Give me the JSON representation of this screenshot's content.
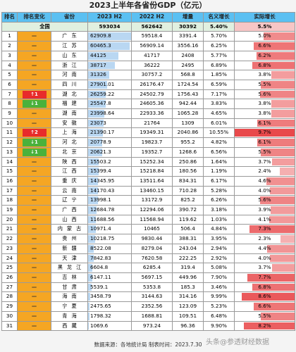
{
  "title": "2023上半年各省份GDP（亿元）",
  "headers": [
    "排名",
    "排名变化",
    "省份",
    "2023 H2",
    "2022 H2",
    "增量",
    "名义增长",
    "实际增长"
  ],
  "total": {
    "label": "全国",
    "h2023": "593034",
    "h2022": "562642",
    "inc": "30392",
    "nom": "5.40%",
    "real": "5.5%"
  },
  "rows": [
    {
      "rank": "1",
      "change": "—",
      "prov": "广东",
      "h2023": "62909.8",
      "h2022": "59518.4",
      "inc": "3391.4",
      "nom": "5.70%",
      "real": "5.0%",
      "realNum": 5.0
    },
    {
      "rank": "2",
      "change": "—",
      "prov": "江苏",
      "h2023": "60465.3",
      "h2022": "56909.14",
      "inc": "3556.16",
      "nom": "6.25%",
      "real": "6.6%",
      "realNum": 6.6
    },
    {
      "rank": "3",
      "change": "—",
      "prov": "山东",
      "h2023": "44125",
      "h2022": "41717",
      "inc": "2408",
      "nom": "5.77%",
      "real": "6.2%",
      "realNum": 6.2
    },
    {
      "rank": "4",
      "change": "—",
      "prov": "浙江",
      "h2023": "38717",
      "h2022": "36222",
      "inc": "2495",
      "nom": "6.89%",
      "real": "6.8%",
      "realNum": 6.8
    },
    {
      "rank": "5",
      "change": "—",
      "prov": "河南",
      "h2023": "31326",
      "h2022": "30757.2",
      "inc": "568.8",
      "nom": "1.85%",
      "real": "3.8%",
      "realNum": 3.8
    },
    {
      "rank": "6",
      "change": "—",
      "prov": "四川",
      "h2023": "27901.01",
      "h2022": "26176.47",
      "inc": "1724.54",
      "nom": "6.59%",
      "real": "5.5%",
      "realNum": 5.5
    },
    {
      "rank": "7",
      "change": "↑1",
      "prov": "湖北",
      "h2023": "26259.22",
      "h2022": "24502.79",
      "inc": "1756.43",
      "nom": "7.17%",
      "real": "5.6%",
      "realNum": 5.6
    },
    {
      "rank": "8",
      "change": "↓1",
      "prov": "福建",
      "h2023": "25547.8",
      "h2022": "24605.36",
      "inc": "942.44",
      "nom": "3.83%",
      "real": "3.8%",
      "realNum": 3.8
    },
    {
      "rank": "9",
      "change": "—",
      "prov": "湖南",
      "h2023": "23998.64",
      "h2022": "22933.36",
      "inc": "1065.28",
      "nom": "4.65%",
      "real": "3.8%",
      "realNum": 3.8
    },
    {
      "rank": "10",
      "change": "—",
      "prov": "安徽",
      "h2023": "23073",
      "h2022": "21764",
      "inc": "1309",
      "nom": "6.01%",
      "real": "6.1%",
      "realNum": 6.1
    },
    {
      "rank": "11",
      "change": "↑2",
      "prov": "上海",
      "h2023": "21390.17",
      "h2022": "19349.31",
      "inc": "2040.86",
      "nom": "10.55%",
      "real": "9.7%",
      "realNum": 9.7
    },
    {
      "rank": "12",
      "change": "↓1",
      "prov": "河北",
      "h2023": "20778.9",
      "h2022": "19823.7",
      "inc": "955.2",
      "nom": "4.82%",
      "real": "6.1%",
      "realNum": 6.1
    },
    {
      "rank": "13",
      "change": "↓1",
      "prov": "北京",
      "h2023": "20621.3",
      "h2022": "19352.7",
      "inc": "1268.6",
      "nom": "6.56%",
      "real": "5.5%",
      "realNum": 5.5
    },
    {
      "rank": "14",
      "change": "—",
      "prov": "陕西",
      "h2023": "15503.2",
      "h2022": "15252.34",
      "inc": "250.86",
      "nom": "1.64%",
      "real": "3.7%",
      "realNum": 3.7
    },
    {
      "rank": "15",
      "change": "—",
      "prov": "江西",
      "h2023": "15399.4",
      "h2022": "15218.84",
      "inc": "180.56",
      "nom": "1.19%",
      "real": "2.4%",
      "realNum": 2.4
    },
    {
      "rank": "16",
      "change": "—",
      "prov": "重庆",
      "h2023": "14345.95",
      "h2022": "13511.64",
      "inc": "834.31",
      "nom": "6.17%",
      "real": "4.6%",
      "realNum": 4.6
    },
    {
      "rank": "17",
      "change": "—",
      "prov": "云南",
      "h2023": "14170.43",
      "h2022": "13460.15",
      "inc": "710.28",
      "nom": "5.28%",
      "real": "4.0%",
      "realNum": 4.0
    },
    {
      "rank": "18",
      "change": "—",
      "prov": "辽宁",
      "h2023": "13998.1",
      "h2022": "13172.9",
      "inc": "825.2",
      "nom": "6.26%",
      "real": "5.6%",
      "realNum": 5.6
    },
    {
      "rank": "19",
      "change": "—",
      "prov": "广西",
      "h2023": "12684.78",
      "h2022": "12294.06",
      "inc": "390.72",
      "nom": "3.18%",
      "real": "3.9%",
      "realNum": 3.9
    },
    {
      "rank": "20",
      "change": "—",
      "prov": "山西",
      "h2023": "11688.56",
      "h2022": "11568.94",
      "inc": "119.62",
      "nom": "1.03%",
      "real": "4.1%",
      "realNum": 4.1
    },
    {
      "rank": "21",
      "change": "—",
      "prov": "内蒙古",
      "h2023": "10971.4",
      "h2022": "10465",
      "inc": "506.4",
      "nom": "4.84%",
      "real": "7.3%",
      "realNum": 7.3
    },
    {
      "rank": "22",
      "change": "—",
      "prov": "贵州",
      "h2023": "10218.75",
      "h2022": "9830.44",
      "inc": "388.31",
      "nom": "3.95%",
      "real": "2.3%",
      "realNum": 2.3
    },
    {
      "rank": "23",
      "change": "—",
      "prov": "新疆",
      "h2023": "8522.08",
      "h2022": "8279.04",
      "inc": "243.04",
      "nom": "2.94%",
      "real": "4.4%",
      "realNum": 4.4
    },
    {
      "rank": "24",
      "change": "—",
      "prov": "天津",
      "h2023": "7842.83",
      "h2022": "7620.58",
      "inc": "222.25",
      "nom": "2.92%",
      "real": "4.0%",
      "realNum": 4.0
    },
    {
      "rank": "25",
      "change": "—",
      "prov": "黑龙江",
      "h2023": "6604.8",
      "h2022": "6285.4",
      "inc": "319.4",
      "nom": "5.08%",
      "real": "3.7%",
      "realNum": 3.7
    },
    {
      "rank": "26",
      "change": "—",
      "prov": "吉林",
      "h2023": "6147.11",
      "h2022": "5697.15",
      "inc": "449.96",
      "nom": "7.90%",
      "real": "7.7%",
      "realNum": 7.7
    },
    {
      "rank": "27",
      "change": "—",
      "prov": "甘肃",
      "h2023": "5539.1",
      "h2022": "5353.8",
      "inc": "185.3",
      "nom": "3.46%",
      "real": "6.8%",
      "realNum": 6.8
    },
    {
      "rank": "28",
      "change": "—",
      "prov": "海南",
      "h2023": "3458.79",
      "h2022": "3144.63",
      "inc": "314.16",
      "nom": "9.99%",
      "real": "8.6%",
      "realNum": 8.6
    },
    {
      "rank": "29",
      "change": "—",
      "prov": "宁夏",
      "h2023": "2475.65",
      "h2022": "2352.56",
      "inc": "123.09",
      "nom": "5.23%",
      "real": "6.6%",
      "realNum": 6.6
    },
    {
      "rank": "30",
      "change": "—",
      "prov": "青海",
      "h2023": "1798.32",
      "h2022": "1688.81",
      "inc": "109.51",
      "nom": "6.48%",
      "real": "5.5%",
      "realNum": 5.5
    },
    {
      "rank": "31",
      "change": "—",
      "prov": "西藏",
      "h2023": "1069.6",
      "h2022": "973.24",
      "inc": "96.36",
      "nom": "9.90%",
      "real": "8.2%",
      "realNum": 8.2
    }
  ],
  "footer": "数据来源：各地统计局    制表时间：2023.7.30",
  "watermark": "头条@参透财经数据",
  "colors": {
    "header": "#5bc0f2",
    "changeCol": "#f5a623",
    "up": "#e82b2b",
    "down": "#4ab13c",
    "h1bar": "#b9d7f2",
    "realBarLight": "#f7c6c6",
    "realBarDark": "#e8494b"
  }
}
